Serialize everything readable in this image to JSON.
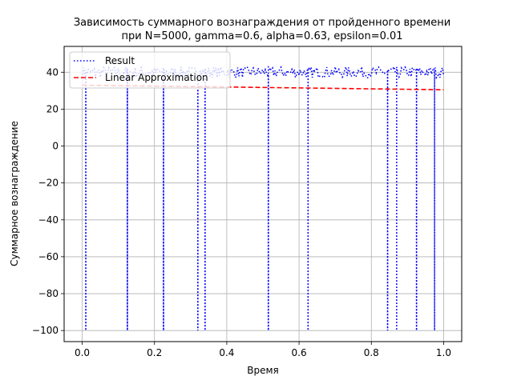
{
  "chart_data": {
    "type": "line",
    "title_line1": "Зависимость суммарного вознаграждения от пройденного времени",
    "title_line2": "при N=5000, gamma=0.6, alpha=0.63, epsilon=0.01",
    "xlabel": "Время",
    "ylabel": "Суммарное вознаграждение",
    "xlim": [
      -0.05,
      1.05
    ],
    "ylim": [
      -106,
      54
    ],
    "xticks": [
      0.0,
      0.2,
      0.4,
      0.6,
      0.8,
      1.0
    ],
    "xtick_labels": [
      "0.0",
      "0.2",
      "0.4",
      "0.6",
      "0.8",
      "1.0"
    ],
    "yticks": [
      -100,
      -80,
      -60,
      -40,
      -20,
      0,
      20,
      40
    ],
    "ytick_labels": [
      "−100",
      "−80",
      "−60",
      "−40",
      "−20",
      "0",
      "20",
      "40"
    ],
    "grid": true,
    "legend_position": "top-left",
    "series": [
      {
        "name": "Result",
        "style": "dotted",
        "color": "#0000ff",
        "baseline_y": 40,
        "x_start": 0.0,
        "x_end": 1.0,
        "n_points": 300,
        "noise_amplitude": 3,
        "dips": [
          {
            "x": 0.01,
            "y": -100
          },
          {
            "x": 0.125,
            "y": -100
          },
          {
            "x": 0.225,
            "y": -100
          },
          {
            "x": 0.32,
            "y": -100
          },
          {
            "x": 0.34,
            "y": -100
          },
          {
            "x": 0.515,
            "y": -100
          },
          {
            "x": 0.625,
            "y": -100
          },
          {
            "x": 0.845,
            "y": -100
          },
          {
            "x": 0.87,
            "y": -100
          },
          {
            "x": 0.925,
            "y": -100
          },
          {
            "x": 0.975,
            "y": -100
          }
        ]
      },
      {
        "name": "Linear Approximation",
        "style": "dashed",
        "color": "#ff0000",
        "x": [
          0.0,
          1.0
        ],
        "y": [
          33,
          30.5
        ]
      }
    ]
  }
}
